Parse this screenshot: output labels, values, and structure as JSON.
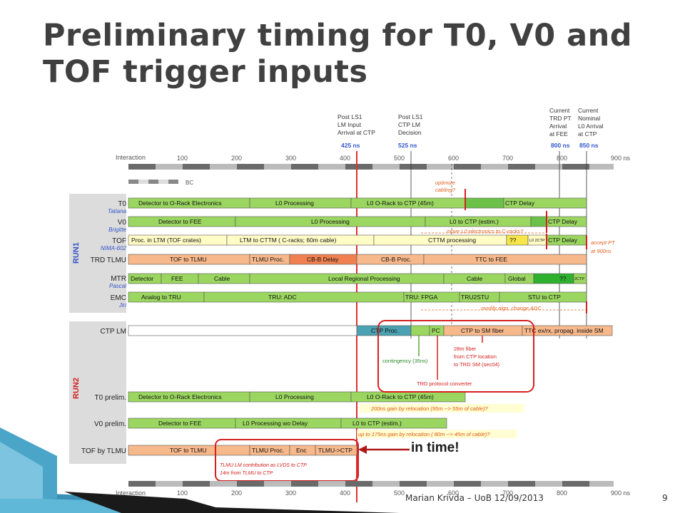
{
  "title": "Preliminary timing for T0, V0 and TOF trigger inputs",
  "footer": {
    "author_date": "Marian Krivda – UoB 12/09/2013",
    "page": "9"
  },
  "diagram": {
    "axis": {
      "label": "Interaction",
      "ticks": [
        "100",
        "200",
        "300",
        "400",
        "500",
        "600",
        "700",
        "800",
        "900 ns"
      ]
    },
    "bc_label": "BC",
    "markers": [
      {
        "lines": [
          "Post LS1",
          "LM Input",
          "Arrival at CTP"
        ],
        "value": "425 ns"
      },
      {
        "lines": [
          "Post LS1",
          "CTP LM",
          "Decision"
        ],
        "value": "525 ns"
      },
      {
        "lines": [
          "Current",
          "TRD PT",
          "Arrival",
          "at FEE"
        ],
        "value": "800 ns"
      },
      {
        "lines": [
          "Current",
          "Nominal",
          "L0 Arrival",
          "at CTP"
        ],
        "value": "850 ns"
      }
    ],
    "group_labels": {
      "run1": "RUN1",
      "run2": "RUN2"
    },
    "rows": [
      {
        "label": "T0",
        "sub": "Tatiana",
        "segments": [
          "Detector to O-Rack Electronics",
          "L0 Processing",
          "L0 O-Rack to CTP (45m)",
          "",
          "CTP Delay"
        ]
      },
      {
        "label": "V0",
        "sub": "Brigitte",
        "segments": [
          "Detector to FEE",
          "L0 Processing",
          "L0 to CTP (estim.)",
          "",
          "CTP Delay"
        ]
      },
      {
        "label": "TOF",
        "sub": "NIMA-602",
        "segments": [
          "Proc. in LTM (TOF crates)",
          "LTM to CTTM ( C-racks; 60m cable)",
          "CTTM processing",
          "??",
          "L0 2CTP",
          "CTP Delay"
        ]
      },
      {
        "label": "TRD TLMU",
        "sub": "",
        "segments": [
          "TOF to TLMU",
          "TLMU Proc.",
          "CB-B Delay",
          "CB-B Proc.",
          "TTC to FEE"
        ]
      },
      {
        "label": "MTR",
        "sub": "Pascal",
        "segments": [
          "Detector",
          "FEE",
          "Cable",
          "Local Regional Processing",
          "Cable",
          "Global",
          "??",
          "2CTP"
        ]
      },
      {
        "label": "EMC",
        "sub": "Jiri",
        "segments": [
          "Analog to TRU",
          "TRU: ADC",
          "TRU: FPGA",
          "TRU2STU",
          "STU to CTP"
        ]
      },
      {
        "label": "CTP LM",
        "sub": "",
        "segments": [
          "",
          "CTP Proc.",
          "",
          "PC",
          "CTP to SM fiber",
          "TTC ex/rx, propag. inside SM"
        ]
      },
      {
        "label": "T0 prelim.",
        "sub": "",
        "segments": [
          "Detector to O-Rack Electronics",
          "L0 Processing",
          "L0 O-Rack to CTP (45m)"
        ]
      },
      {
        "label": "V0 prelim.",
        "sub": "",
        "segments": [
          "Detector to FEE",
          "L0 Processing wo Delay",
          "L0 to CTP (estim.)"
        ]
      },
      {
        "label": "TOF by TLMU",
        "sub": "",
        "segments": [
          "TOF to TLMU",
          "TLMU Proc.",
          "Enc",
          "TLMU->CTP"
        ]
      }
    ],
    "notes": {
      "optimize": [
        "optimize",
        "cabling?"
      ],
      "move_l0": "move L0 electronics to C-racks?",
      "accept_pt": [
        "accept PT",
        "at 900ns"
      ],
      "modify_algo": "modify algo, change ADC",
      "contingency": "contingency (35ns)",
      "fiber": [
        "28m fiber",
        "from CTP location",
        "to TRD SM (sec04)"
      ],
      "protocol": "TRD protocol converter",
      "gain_t0": "200ns gain by relocation (95m --> 55m of cable)?",
      "gain_v0": "up to 175ns gain by relocation ( 80m --> 45m of cable)?",
      "tlmu_contrib": [
        "TLMU LM contribution as LVDS to CTP",
        "14m from TLMU to CTP"
      ],
      "in_time": "in time!"
    }
  },
  "colors": {
    "title": "#404040",
    "green": "#9bd760",
    "orange": "#f7b88b",
    "yellow": "#fffcc6",
    "red": "#d42020",
    "blue": "#3355cc",
    "teal": "#4aa2b3"
  }
}
